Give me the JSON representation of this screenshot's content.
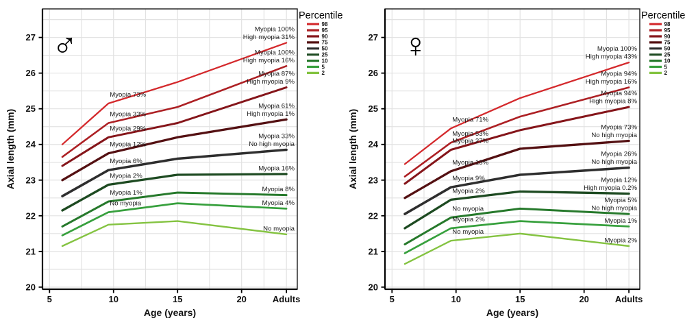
{
  "figure": {
    "background": "#ffffff"
  },
  "axes": {
    "x_label": "Age (years)",
    "y_label": "Axial length (mm)",
    "x_ticks": [
      {
        "label": "5",
        "age": 5
      },
      {
        "label": "10",
        "age": 10
      },
      {
        "label": "15",
        "age": 15
      },
      {
        "label": "20",
        "age": 20
      },
      {
        "label": "Adults",
        "age": 23.5
      }
    ],
    "y_ticks": [
      20,
      21,
      22,
      23,
      24,
      25,
      26,
      27
    ],
    "x_range": [
      4.45,
      24.35
    ],
    "y_range": [
      19.94,
      27.8
    ],
    "x_minor_grid": [
      7.5,
      12.5,
      17.5,
      21.75
    ],
    "grid": true,
    "grid_color": "#e2e2e2"
  },
  "legend": {
    "title": "Percentile",
    "position": "right",
    "entries": [
      {
        "label": "98",
        "color": "#d4292c"
      },
      {
        "label": "95",
        "color": "#ad2024"
      },
      {
        "label": "90",
        "color": "#85151a"
      },
      {
        "label": "75",
        "color": "#541012"
      },
      {
        "label": "50",
        "color": "#2e2e2e"
      },
      {
        "label": "25",
        "color": "#1d4a21"
      },
      {
        "label": "10",
        "color": "#26792b"
      },
      {
        "label": "5",
        "color": "#37a03d"
      },
      {
        "label": "2",
        "color": "#84c341"
      }
    ]
  },
  "chart_data": [
    {
      "type": "line",
      "panel": "male",
      "symbol": "♂",
      "x": [
        6,
        9.6,
        15,
        23.5
      ],
      "x_note": "ages in years; 23.5 plotted at the Adults position",
      "series": [
        {
          "percentile": "98",
          "values": [
            24.0,
            25.15,
            25.75,
            26.85
          ],
          "mid_label": "Myopia 73%",
          "end_label": [
            "Myopia 100%",
            "High myopia 31%"
          ]
        },
        {
          "percentile": "95",
          "values": [
            23.65,
            24.6,
            25.05,
            26.2
          ],
          "mid_label": "Myopia 33%",
          "end_label": [
            "Myopia 100%",
            "High myopia 16%"
          ]
        },
        {
          "percentile": "90",
          "values": [
            23.4,
            24.2,
            24.6,
            25.6
          ],
          "mid_label": "Myopia 29%",
          "end_label": [
            "Myopia 87%",
            "High myopia 9%"
          ]
        },
        {
          "percentile": "75",
          "values": [
            23.0,
            23.75,
            24.2,
            24.7
          ],
          "mid_label": "Myopia 12%",
          "end_label": [
            "Myopia 61%",
            "High myopia 1%"
          ]
        },
        {
          "percentile": "50",
          "values": [
            22.55,
            23.28,
            23.6,
            23.85
          ],
          "mid_label": "Myopia 6%",
          "end_label": [
            "Myopia 33%",
            "No high myopia"
          ]
        },
        {
          "percentile": "25",
          "values": [
            22.15,
            22.87,
            23.15,
            23.17
          ],
          "mid_label": "Myopia 2%",
          "end_label": [
            "Myopia 16%"
          ]
        },
        {
          "percentile": "10",
          "values": [
            21.7,
            22.4,
            22.65,
            22.58
          ],
          "mid_label": "Myopia 1%",
          "end_label": [
            "Myopia 8%"
          ]
        },
        {
          "percentile": "5",
          "values": [
            21.45,
            22.1,
            22.35,
            22.2
          ],
          "mid_label": "No myopia",
          "end_label": [
            "Myopia 4%"
          ]
        },
        {
          "percentile": "2",
          "values": [
            21.15,
            21.75,
            21.85,
            21.48
          ],
          "mid_label": "",
          "end_label": [
            "No myopia"
          ]
        }
      ]
    },
    {
      "type": "line",
      "panel": "female",
      "symbol": "♀",
      "x": [
        6,
        9.6,
        15,
        23.5
      ],
      "x_note": "ages in years; 23.5 plotted at the Adults position",
      "series": [
        {
          "percentile": "98",
          "values": [
            23.45,
            24.45,
            25.3,
            26.3
          ],
          "mid_label": "Myopia 71%",
          "end_label": [
            "Myopia 100%",
            "High myopia 43%"
          ]
        },
        {
          "percentile": "95",
          "values": [
            23.1,
            24.05,
            24.78,
            25.6
          ],
          "mid_label": "Myopia 53%",
          "end_label": [
            "Myopia 94%",
            "High myopia 16%"
          ]
        },
        {
          "percentile": "90",
          "values": [
            22.9,
            23.85,
            24.4,
            25.05
          ],
          "mid_label": "Myopia 27%",
          "end_label": [
            "Myopia 94%",
            "High myopia 8%"
          ]
        },
        {
          "percentile": "75",
          "values": [
            22.5,
            23.25,
            23.88,
            24.1
          ],
          "mid_label": "Myopia 13%",
          "end_label": [
            "Myopia 73%",
            "No high myopia"
          ]
        },
        {
          "percentile": "50",
          "values": [
            22.05,
            22.8,
            23.15,
            23.35
          ],
          "mid_label": "Myopia 9%",
          "end_label": [
            "Myopia 26%",
            "No high myopia"
          ]
        },
        {
          "percentile": "25",
          "values": [
            21.65,
            22.45,
            22.68,
            22.62
          ],
          "mid_label": "Myopia 2%",
          "end_label": [
            "Myopia 12%",
            "High myopia 0.2%"
          ]
        },
        {
          "percentile": "10",
          "values": [
            21.2,
            21.95,
            22.2,
            22.05
          ],
          "mid_label": "No myopia",
          "end_label": [
            "Myopia 5%",
            "No high myopia"
          ]
        },
        {
          "percentile": "5",
          "values": [
            20.95,
            21.65,
            21.85,
            21.7
          ],
          "mid_label": "Myopia 2%",
          "end_label": [
            "Myopia 1%"
          ]
        },
        {
          "percentile": "2",
          "values": [
            20.65,
            21.3,
            21.5,
            21.15
          ],
          "mid_label": "No myopia",
          "end_label": [
            "Myopia 2%"
          ]
        }
      ]
    }
  ]
}
